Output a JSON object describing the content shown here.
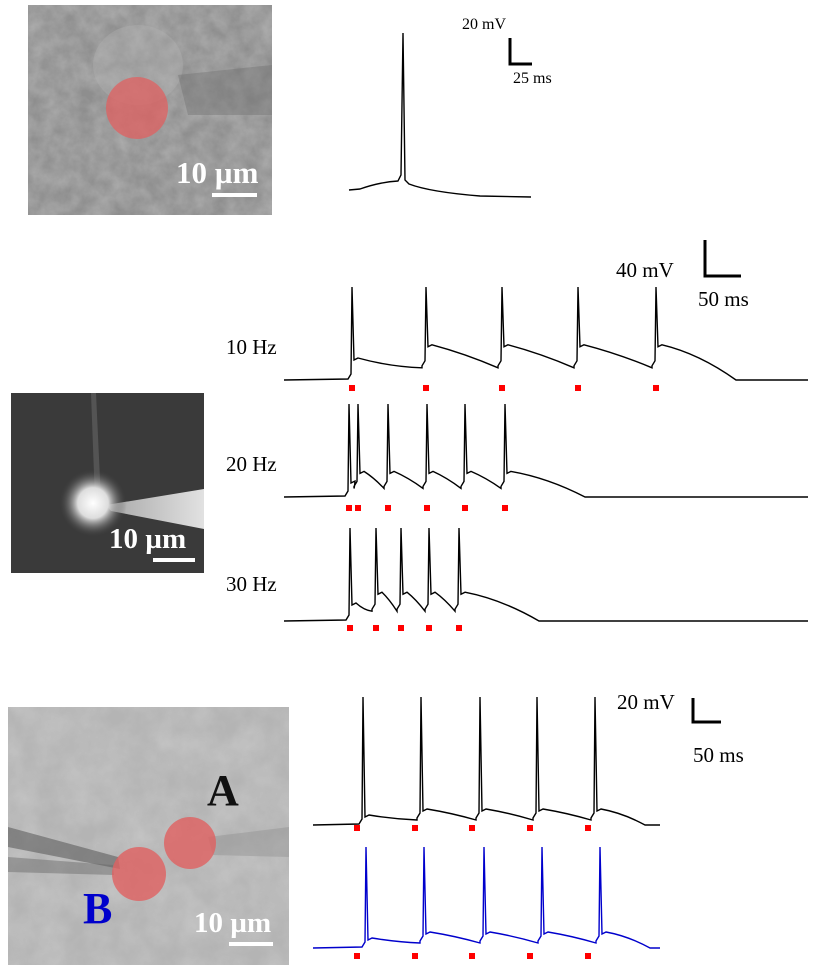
{
  "panel_top": {
    "scale_bar_label": "10 µm",
    "scale_v": "20 mV",
    "scale_h": "25 ms"
  },
  "panel_middle": {
    "scale_bar_label": "10 µm",
    "scale_v": "40 mV",
    "scale_h": "50 ms",
    "rows": [
      {
        "label": "10 Hz",
        "spike_count": 5
      },
      {
        "label": "20 Hz",
        "spike_count": 6
      },
      {
        "label": "30 Hz",
        "spike_count": 5
      }
    ]
  },
  "panel_bottom": {
    "scale_bar_label": "10 µm",
    "scale_v": "20 mV",
    "scale_h": "50 ms",
    "cell_a_label": "A",
    "cell_b_label": "B",
    "trace_colors": {
      "a": "#000000",
      "b": "#0000cc"
    }
  },
  "colors": {
    "stimulus": "#ff0000",
    "roi": "#e06060",
    "cell_b": "#0000cc"
  }
}
